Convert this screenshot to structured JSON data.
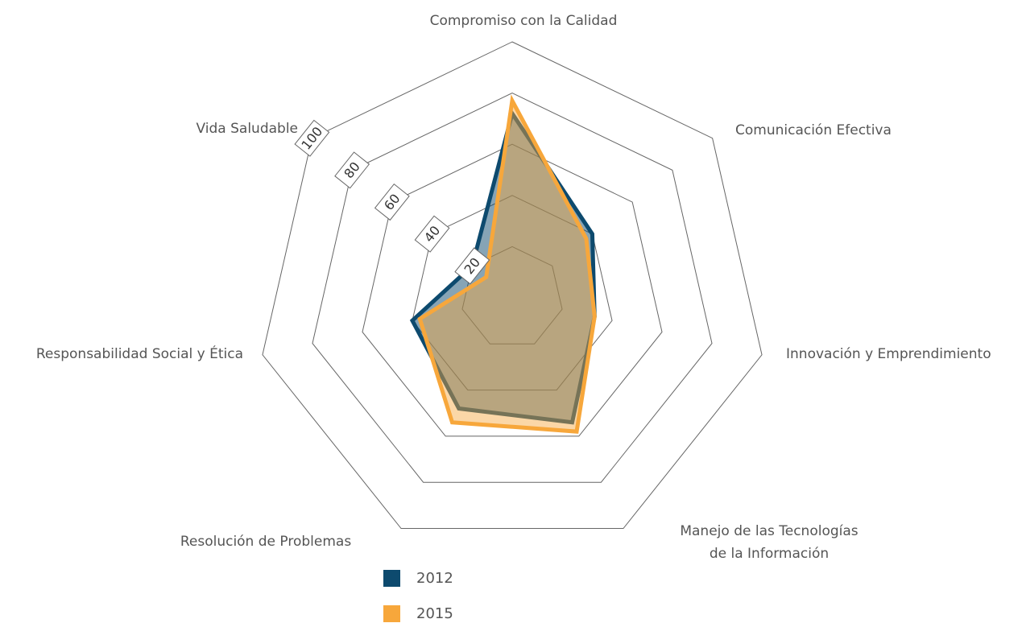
{
  "chart_data": {
    "type": "radar",
    "categories": [
      "Compromiso con la Calidad",
      "Comunicación Efectiva",
      "Innovación y Emprendimiento",
      "Manejo de las Tecnologías\nde la Información",
      "Resolución de Problemas",
      "Responsabilidad Social y Ética",
      "Vida Saludable"
    ],
    "series": [
      {
        "name": "2012",
        "color": "#0d4a6e",
        "values": [
          72,
          40,
          33,
          54,
          48,
          40,
          20
        ]
      },
      {
        "name": "2015",
        "color": "#f7a73b",
        "values": [
          77,
          37,
          33,
          58,
          54,
          37,
          13
        ]
      }
    ],
    "rlim": [
      0,
      100
    ],
    "rticks": [
      20,
      40,
      60,
      80,
      100
    ],
    "grid": true,
    "legend": "bottom"
  }
}
